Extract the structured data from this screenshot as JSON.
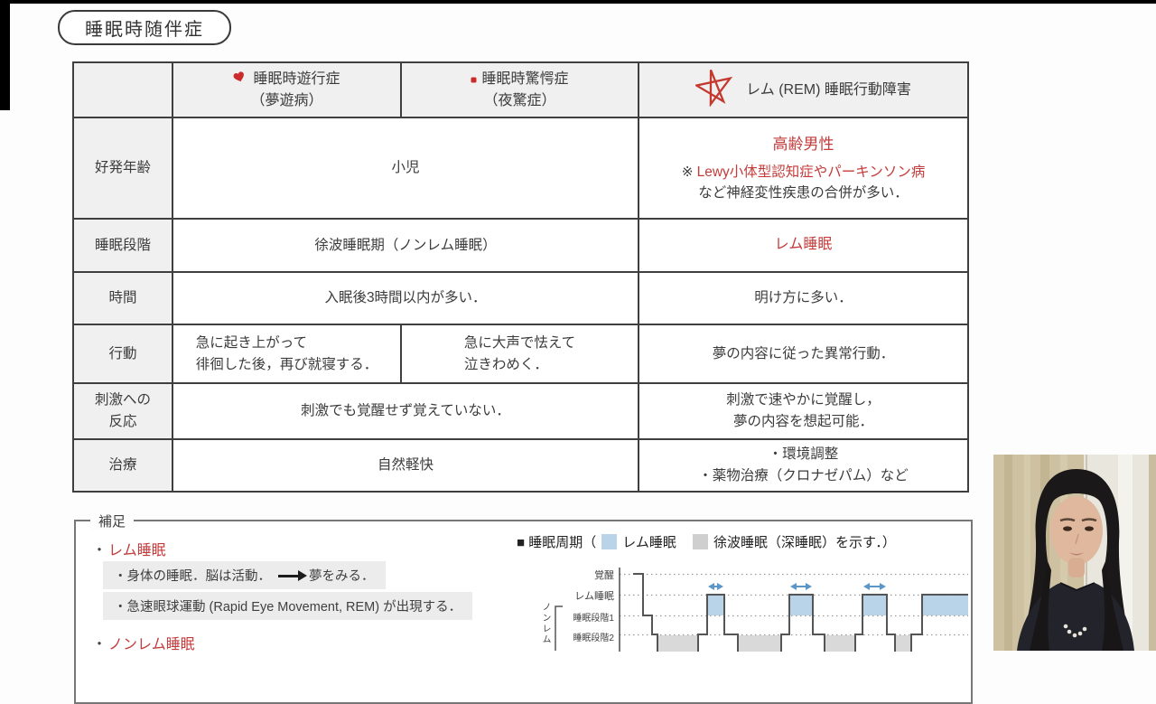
{
  "slide_title": "睡眠時随伴症",
  "colors": {
    "accent_red": "#c43b3b",
    "cell_gray": "#f0f0f0",
    "highlight_gray": "#ececec",
    "rem_fill_blue": "#b9d3e8",
    "sws_fill_gray": "#d9d9d9"
  },
  "table": {
    "header": {
      "sleepwalking_title": "睡眠時遊行症",
      "sleepwalking_sub": "（夢遊病）",
      "terror_title": "睡眠時驚愕症",
      "terror_sub": "（夜驚症）",
      "rbd_title": "レム (REM) 睡眠行動障害",
      "icons": {
        "sleepwalking": "red-heart-icon",
        "terror": "red-dot-icon",
        "rbd": "red-star-icon"
      }
    },
    "rows": {
      "age": {
        "label": "好発年齢",
        "children": "小児",
        "rbd_main": "高齢男性",
        "rbd_note_mark": "※",
        "rbd_note_red": "Lewy小体型認知症やパーキンソン病",
        "rbd_note_rest": "など神経変性疾患の合併が多い．"
      },
      "stage": {
        "label": "睡眠段階",
        "nonrem": "徐波睡眠期（ノンレム睡眠）",
        "rbd": "レム睡眠"
      },
      "time": {
        "label": "時間",
        "nonrem": "入眠後3時間以内が多い．",
        "rbd": "明け方に多い．"
      },
      "behavior": {
        "label": "行動",
        "walk_line1": "急に起き上がって",
        "walk_line2": "徘徊した後，再び就寝する．",
        "terror_line1": "急に大声で怯えて",
        "terror_line2": "泣きわめく．",
        "rbd": "夢の内容に従った異常行動．"
      },
      "stimulus": {
        "label_line1": "刺激への",
        "label_line2": "反応",
        "nonrem": "刺激でも覚醒せず覚えていない．",
        "rbd_line1": "刺激で速やかに覚醒し，",
        "rbd_line2": "夢の内容を想起可能．"
      },
      "treatment": {
        "label": "治療",
        "nonrem": "自然軽快",
        "rbd_line1": "・環境調整",
        "rbd_line2": "・薬物治療（クロナゼパム）など"
      }
    }
  },
  "supplement": {
    "box_label": "補足",
    "rem_bullet": "・",
    "rem_title": "レム睡眠",
    "rem_point1_pre": "・身体の睡眠．脳は活動．",
    "rem_point1_post": "夢をみる．",
    "rem_point2": "・急速眼球運動 (Rapid Eye Movement, REM) が出現する．",
    "nonrem_bullet": "・",
    "nonrem_title": "ノンレム睡眠"
  },
  "sleep_chart": {
    "type": "step-line hypnogram",
    "legend_prefix": "■ 睡眠周期（",
    "legend_rem": "レム睡眠",
    "legend_sws": "徐波睡眠（深睡眠）を示す．）",
    "y_labels": {
      "wake": "覚醒",
      "rem": "レム睡眠",
      "st1": "睡眠段階1",
      "st2": "睡眠段階2",
      "nonrem_group": "ノンレム"
    },
    "colors": {
      "rem_fill": "#b9d3e8",
      "sws_fill": "#d9d9d9",
      "arrow": "#5a96c8",
      "line": "#555555",
      "grid": "#9a9a9a"
    },
    "level_y": {
      "wake": 11,
      "rem": 34,
      "st1": 57,
      "st2": 78,
      "deep": 112
    },
    "segments": [
      {
        "from": 17,
        "to": 28,
        "level": "wake"
      },
      {
        "from": 28,
        "to": 38,
        "level": "st1"
      },
      {
        "from": 38,
        "to": 44,
        "level": "st2"
      },
      {
        "from": 44,
        "to": 89,
        "level": "deep"
      },
      {
        "from": 89,
        "to": 99,
        "level": "st2"
      },
      {
        "from": 99,
        "to": 118,
        "level": "rem"
      },
      {
        "from": 118,
        "to": 133,
        "level": "st2"
      },
      {
        "from": 133,
        "to": 181,
        "level": "deep"
      },
      {
        "from": 181,
        "to": 190,
        "level": "st2"
      },
      {
        "from": 190,
        "to": 216,
        "level": "rem"
      },
      {
        "from": 216,
        "to": 229,
        "level": "st2"
      },
      {
        "from": 229,
        "to": 263,
        "level": "deep"
      },
      {
        "from": 263,
        "to": 271,
        "level": "st2"
      },
      {
        "from": 271,
        "to": 298,
        "level": "rem"
      },
      {
        "from": 298,
        "to": 307,
        "level": "st2"
      },
      {
        "from": 307,
        "to": 325,
        "level": "deep"
      },
      {
        "from": 325,
        "to": 337,
        "level": "st2"
      },
      {
        "from": 337,
        "to": 388,
        "level": "rem"
      }
    ],
    "arrow_over_rem_blocks": 3
  }
}
